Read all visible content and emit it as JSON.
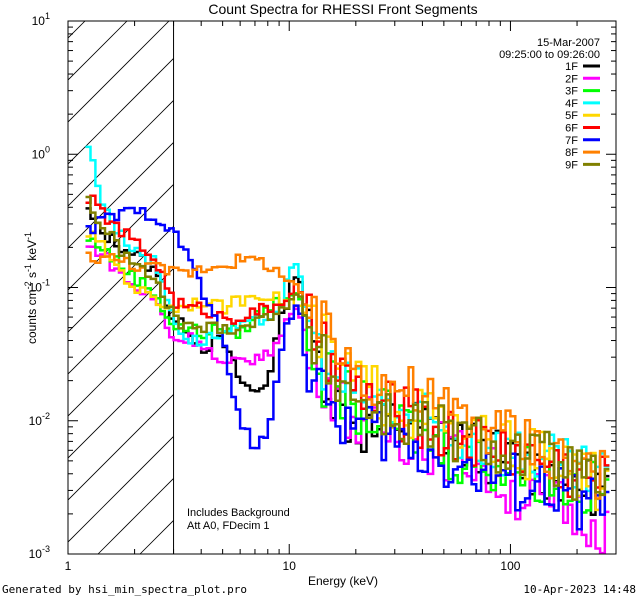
{
  "chart_data": {
    "type": "line",
    "title": "Count Spectra for RHESSI Front Segments",
    "xlabel": "Energy (keV)",
    "ylabel_parts": {
      "base": "counts cm",
      "exp1": "-2",
      "mid1": " s",
      "exp2": "-1",
      "mid2": " keV",
      "exp3": "-1"
    },
    "x_scale": "log",
    "y_scale": "log",
    "xlim": [
      1,
      300
    ],
    "ylim": [
      0.001,
      10
    ],
    "x_ticks": [
      {
        "value": 1,
        "label": "1"
      },
      {
        "value": 10,
        "label": "10"
      },
      {
        "value": 100,
        "label": "100"
      }
    ],
    "y_ticks": [
      {
        "value": 0.001,
        "base": "10",
        "exp": "-3"
      },
      {
        "value": 0.01,
        "base": "10",
        "exp": "-2"
      },
      {
        "value": 0.1,
        "base": "10",
        "exp": "-1"
      },
      {
        "value": 1,
        "base": "10",
        "exp": "0"
      },
      {
        "value": 10,
        "base": "10",
        "exp": "1"
      }
    ],
    "hatched_region": [
      1,
      3
    ],
    "date": "15-Mar-2007",
    "time_range": "09:25:00 to 09:26:00",
    "annotations": [
      "Includes Background",
      "Att A0, FDecim 1"
    ],
    "series": [
      {
        "name": "1F",
        "color": "#000000",
        "points": [
          [
            1.2,
            0.4
          ],
          [
            1.4,
            0.26
          ],
          [
            1.7,
            0.21
          ],
          [
            2,
            0.18
          ],
          [
            2.5,
            0.13
          ],
          [
            3,
            0.055
          ],
          [
            3.5,
            0.05
          ],
          [
            4,
            0.035
          ],
          [
            5,
            0.04
          ],
          [
            6,
            0.02
          ],
          [
            7,
            0.016
          ],
          [
            8,
            0.02
          ],
          [
            9,
            0.05
          ],
          [
            10,
            0.09
          ],
          [
            11,
            0.15
          ],
          [
            12,
            0.05
          ],
          [
            14,
            0.025
          ],
          [
            17,
            0.012
          ],
          [
            20,
            0.009
          ],
          [
            25,
            0.008
          ],
          [
            30,
            0.01
          ],
          [
            40,
            0.009
          ],
          [
            50,
            0.008
          ],
          [
            70,
            0.006
          ],
          [
            100,
            0.005
          ],
          [
            150,
            0.004
          ],
          [
            200,
            0.0035
          ],
          [
            280,
            0.003
          ]
        ]
      },
      {
        "name": "2F",
        "color": "#ff00ff",
        "points": [
          [
            1.2,
            0.2
          ],
          [
            1.4,
            0.19
          ],
          [
            1.7,
            0.13
          ],
          [
            2,
            0.1
          ],
          [
            2.5,
            0.08
          ],
          [
            3,
            0.04
          ],
          [
            3.5,
            0.042
          ],
          [
            4,
            0.04
          ],
          [
            5,
            0.025
          ],
          [
            6,
            0.028
          ],
          [
            7,
            0.03
          ],
          [
            8,
            0.03
          ],
          [
            9,
            0.045
          ],
          [
            10,
            0.06
          ],
          [
            11,
            0.07
          ],
          [
            12,
            0.04
          ],
          [
            14,
            0.022
          ],
          [
            17,
            0.014
          ],
          [
            20,
            0.01
          ],
          [
            25,
            0.009
          ],
          [
            30,
            0.008
          ],
          [
            40,
            0.007
          ],
          [
            50,
            0.006
          ],
          [
            70,
            0.005
          ],
          [
            100,
            0.003
          ],
          [
            150,
            0.0025
          ],
          [
            200,
            0.002
          ],
          [
            280,
            0.0016
          ]
        ]
      },
      {
        "name": "3F",
        "color": "#00ff00",
        "points": [
          [
            1.2,
            0.23
          ],
          [
            1.4,
            0.21
          ],
          [
            1.7,
            0.15
          ],
          [
            2,
            0.12
          ],
          [
            2.5,
            0.09
          ],
          [
            3,
            0.05
          ],
          [
            3.5,
            0.05
          ],
          [
            4,
            0.045
          ],
          [
            5,
            0.05
          ],
          [
            6,
            0.045
          ],
          [
            7,
            0.06
          ],
          [
            8,
            0.07
          ],
          [
            9,
            0.08
          ],
          [
            10,
            0.09
          ],
          [
            11,
            0.1
          ],
          [
            12,
            0.045
          ],
          [
            14,
            0.022
          ],
          [
            17,
            0.016
          ],
          [
            20,
            0.013
          ],
          [
            25,
            0.011
          ],
          [
            30,
            0.01
          ],
          [
            40,
            0.008
          ],
          [
            50,
            0.006
          ],
          [
            70,
            0.005
          ],
          [
            100,
            0.0045
          ],
          [
            150,
            0.0038
          ],
          [
            200,
            0.0032
          ],
          [
            280,
            0.0028
          ]
        ]
      },
      {
        "name": "4F",
        "color": "#00ffff",
        "points": [
          [
            1.2,
            1.4
          ],
          [
            1.4,
            0.5
          ],
          [
            1.7,
            0.25
          ],
          [
            2,
            0.2
          ],
          [
            2.5,
            0.15
          ],
          [
            3,
            0.06
          ],
          [
            3.5,
            0.04
          ],
          [
            4,
            0.04
          ],
          [
            5,
            0.045
          ],
          [
            6,
            0.05
          ],
          [
            7,
            0.055
          ],
          [
            8,
            0.06
          ],
          [
            9,
            0.07
          ],
          [
            10,
            0.12
          ],
          [
            11,
            0.15
          ],
          [
            12,
            0.06
          ],
          [
            14,
            0.03
          ],
          [
            17,
            0.02
          ],
          [
            20,
            0.016
          ],
          [
            25,
            0.014
          ],
          [
            30,
            0.012
          ],
          [
            40,
            0.01
          ],
          [
            50,
            0.008
          ],
          [
            70,
            0.007
          ],
          [
            100,
            0.006
          ],
          [
            150,
            0.005
          ],
          [
            200,
            0.004
          ],
          [
            280,
            0.0035
          ]
        ]
      },
      {
        "name": "5F",
        "color": "#ffd700",
        "points": [
          [
            1.2,
            0.27
          ],
          [
            1.4,
            0.21
          ],
          [
            1.7,
            0.14
          ],
          [
            2,
            0.1
          ],
          [
            2.5,
            0.08
          ],
          [
            3,
            0.07
          ],
          [
            3.5,
            0.075
          ],
          [
            4,
            0.08
          ],
          [
            5,
            0.07
          ],
          [
            6,
            0.08
          ],
          [
            7,
            0.09
          ],
          [
            8,
            0.09
          ],
          [
            9,
            0.08
          ],
          [
            10,
            0.08
          ],
          [
            11,
            0.075
          ],
          [
            12,
            0.06
          ],
          [
            14,
            0.04
          ],
          [
            17,
            0.025
          ],
          [
            20,
            0.02
          ],
          [
            25,
            0.016
          ],
          [
            30,
            0.013
          ],
          [
            40,
            0.011
          ],
          [
            50,
            0.009
          ],
          [
            70,
            0.007
          ],
          [
            100,
            0.006
          ],
          [
            150,
            0.005
          ],
          [
            200,
            0.004
          ],
          [
            280,
            0.0032
          ]
        ]
      },
      {
        "name": "6F",
        "color": "#ff0000",
        "points": [
          [
            1.2,
            0.5
          ],
          [
            1.4,
            0.38
          ],
          [
            1.7,
            0.27
          ],
          [
            2,
            0.22
          ],
          [
            2.5,
            0.16
          ],
          [
            3,
            0.08
          ],
          [
            3.5,
            0.07
          ],
          [
            4,
            0.07
          ],
          [
            5,
            0.06
          ],
          [
            6,
            0.06
          ],
          [
            7,
            0.065
          ],
          [
            8,
            0.07
          ],
          [
            9,
            0.075
          ],
          [
            10,
            0.09
          ],
          [
            11,
            0.1
          ],
          [
            12,
            0.06
          ],
          [
            14,
            0.035
          ],
          [
            17,
            0.022
          ],
          [
            20,
            0.017
          ],
          [
            25,
            0.014
          ],
          [
            30,
            0.012
          ],
          [
            40,
            0.01
          ],
          [
            50,
            0.008
          ],
          [
            70,
            0.007
          ],
          [
            100,
            0.006
          ],
          [
            150,
            0.005
          ],
          [
            200,
            0.004
          ],
          [
            280,
            0.0035
          ]
        ]
      },
      {
        "name": "7F",
        "color": "#0000ff",
        "points": [
          [
            1.2,
            0.25
          ],
          [
            1.4,
            0.32
          ],
          [
            1.7,
            0.35
          ],
          [
            2,
            0.37
          ],
          [
            2.5,
            0.35
          ],
          [
            3,
            0.25
          ],
          [
            3.5,
            0.18
          ],
          [
            4,
            0.1
          ],
          [
            5,
            0.04
          ],
          [
            6,
            0.01
          ],
          [
            7,
            0.006
          ],
          [
            8,
            0.008
          ],
          [
            9,
            0.03
          ],
          [
            10,
            0.06
          ],
          [
            11,
            0.08
          ],
          [
            12,
            0.025
          ],
          [
            14,
            0.015
          ],
          [
            17,
            0.011
          ],
          [
            20,
            0.009
          ],
          [
            25,
            0.008
          ],
          [
            30,
            0.007
          ],
          [
            40,
            0.006
          ],
          [
            50,
            0.005
          ],
          [
            70,
            0.004
          ],
          [
            100,
            0.0036
          ],
          [
            150,
            0.003
          ],
          [
            200,
            0.0025
          ],
          [
            280,
            0.0022
          ]
        ]
      },
      {
        "name": "8F",
        "color": "#ff8000",
        "points": [
          [
            1.2,
            0.17
          ],
          [
            1.4,
            0.17
          ],
          [
            1.7,
            0.16
          ],
          [
            2,
            0.15
          ],
          [
            2.5,
            0.14
          ],
          [
            3,
            0.13
          ],
          [
            3.5,
            0.13
          ],
          [
            4,
            0.14
          ],
          [
            5,
            0.15
          ],
          [
            6,
            0.16
          ],
          [
            7,
            0.16
          ],
          [
            8,
            0.15
          ],
          [
            9,
            0.13
          ],
          [
            10,
            0.11
          ],
          [
            11,
            0.09
          ],
          [
            12,
            0.07
          ],
          [
            14,
            0.05
          ],
          [
            17,
            0.035
          ],
          [
            20,
            0.025
          ],
          [
            25,
            0.02
          ],
          [
            30,
            0.018
          ],
          [
            40,
            0.015
          ],
          [
            50,
            0.012
          ],
          [
            70,
            0.01
          ],
          [
            100,
            0.008
          ],
          [
            150,
            0.006
          ],
          [
            200,
            0.005
          ],
          [
            280,
            0.004
          ]
        ]
      },
      {
        "name": "9F",
        "color": "#808000",
        "points": [
          [
            1.2,
            0.5
          ],
          [
            1.4,
            0.3
          ],
          [
            1.7,
            0.2
          ],
          [
            2,
            0.15
          ],
          [
            2.5,
            0.11
          ],
          [
            3,
            0.06
          ],
          [
            3.5,
            0.05
          ],
          [
            4,
            0.05
          ],
          [
            5,
            0.05
          ],
          [
            6,
            0.05
          ],
          [
            7,
            0.055
          ],
          [
            8,
            0.06
          ],
          [
            9,
            0.07
          ],
          [
            10,
            0.08
          ],
          [
            11,
            0.09
          ],
          [
            12,
            0.05
          ],
          [
            14,
            0.028
          ],
          [
            17,
            0.02
          ],
          [
            20,
            0.015
          ],
          [
            25,
            0.012
          ],
          [
            30,
            0.01
          ],
          [
            40,
            0.009
          ],
          [
            50,
            0.008
          ],
          [
            70,
            0.007
          ],
          [
            100,
            0.006
          ],
          [
            150,
            0.005
          ],
          [
            200,
            0.004
          ],
          [
            280,
            0.0032
          ]
        ]
      }
    ]
  },
  "footer": {
    "generated_by": "Generated by hsi_min_spectra_plot.pro",
    "timestamp": "10-Apr-2023 14:48"
  }
}
